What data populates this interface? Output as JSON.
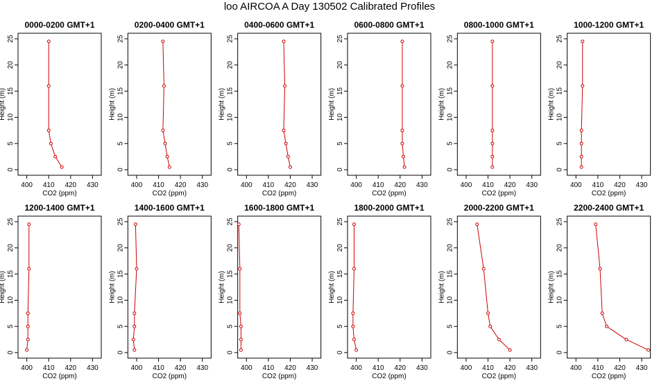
{
  "figure": {
    "title": "loo AIRCOA A  Day 130502  Calibrated Profiles"
  },
  "chart_data": [
    {
      "type": "line",
      "title": "0000-0200 GMT+1",
      "xlabel": "CO2 (ppm)",
      "ylabel": "Height (m)",
      "xlim": [
        396,
        434
      ],
      "ylim": [
        0,
        25
      ],
      "xticks": [
        400,
        410,
        420,
        430
      ],
      "yticks": [
        0,
        5,
        10,
        15,
        20,
        25
      ],
      "series": [
        {
          "color": "#cc0000",
          "x": [
            416,
            413,
            411,
            410,
            410,
            410
          ],
          "y": [
            0.5,
            2.5,
            5,
            7.5,
            16,
            24.5
          ]
        }
      ]
    },
    {
      "type": "line",
      "title": "0200-0400 GMT+1",
      "xlabel": "CO2 (ppm)",
      "ylabel": "Height (m)",
      "xlim": [
        396,
        434
      ],
      "ylim": [
        0,
        25
      ],
      "xticks": [
        400,
        410,
        420,
        430
      ],
      "yticks": [
        0,
        5,
        10,
        15,
        20,
        25
      ],
      "series": [
        {
          "color": "#cc0000",
          "x": [
            415,
            414,
            413,
            412,
            412.5,
            412
          ],
          "y": [
            0.5,
            2.5,
            5,
            7.5,
            16,
            24.5
          ]
        }
      ]
    },
    {
      "type": "line",
      "title": "0400-0600 GMT+1",
      "xlabel": "CO2 (ppm)",
      "ylabel": "Height (m)",
      "xlim": [
        396,
        434
      ],
      "ylim": [
        0,
        25
      ],
      "xticks": [
        400,
        410,
        420,
        430
      ],
      "yticks": [
        0,
        5,
        10,
        15,
        20,
        25
      ],
      "series": [
        {
          "color": "#cc0000",
          "x": [
            420,
            419,
            418,
            417,
            417.5,
            417
          ],
          "y": [
            0.5,
            2.5,
            5,
            7.5,
            16,
            24.5
          ]
        }
      ]
    },
    {
      "type": "line",
      "title": "0600-0800 GMT+1",
      "xlabel": "CO2 (ppm)",
      "ylabel": "Height (m)",
      "xlim": [
        396,
        434
      ],
      "ylim": [
        0,
        25
      ],
      "xticks": [
        400,
        410,
        420,
        430
      ],
      "yticks": [
        0,
        5,
        10,
        15,
        20,
        25
      ],
      "series": [
        {
          "color": "#cc0000",
          "x": [
            422,
            421.5,
            421,
            421,
            421,
            421
          ],
          "y": [
            0.5,
            2.5,
            5,
            7.5,
            16,
            24.5
          ]
        }
      ]
    },
    {
      "type": "line",
      "title": "0800-1000 GMT+1",
      "xlabel": "CO2 (ppm)",
      "ylabel": "Height (m)",
      "xlim": [
        396,
        434
      ],
      "ylim": [
        0,
        25
      ],
      "xticks": [
        400,
        410,
        420,
        430
      ],
      "yticks": [
        0,
        5,
        10,
        15,
        20,
        25
      ],
      "series": [
        {
          "color": "#cc0000",
          "x": [
            412,
            412,
            412,
            412,
            412,
            412
          ],
          "y": [
            0.5,
            2.5,
            5,
            7.5,
            16,
            24.5
          ]
        }
      ]
    },
    {
      "type": "line",
      "title": "1000-1200 GMT+1",
      "xlabel": "CO2 (ppm)",
      "ylabel": "Height (m)",
      "xlim": [
        396,
        434
      ],
      "ylim": [
        0,
        25
      ],
      "xticks": [
        400,
        410,
        420,
        430
      ],
      "yticks": [
        0,
        5,
        10,
        15,
        20,
        25
      ],
      "series": [
        {
          "color": "#cc0000",
          "x": [
            402.5,
            402.5,
            402.5,
            402.5,
            403,
            403
          ],
          "y": [
            0.5,
            2.5,
            5,
            7.5,
            16,
            24.5
          ]
        }
      ]
    },
    {
      "type": "line",
      "title": "1200-1400 GMT+1",
      "xlabel": "CO2 (ppm)",
      "ylabel": "Height (m)",
      "xlim": [
        396,
        434
      ],
      "ylim": [
        0,
        25
      ],
      "xticks": [
        400,
        410,
        420,
        430
      ],
      "yticks": [
        0,
        5,
        10,
        15,
        20,
        25
      ],
      "series": [
        {
          "color": "#cc0000",
          "x": [
            400,
            400.5,
            400.5,
            400.5,
            401,
            401
          ],
          "y": [
            0.5,
            2.5,
            5,
            7.5,
            16,
            24.5
          ]
        }
      ]
    },
    {
      "type": "line",
      "title": "1400-1600 GMT+1",
      "xlabel": "CO2 (ppm)",
      "ylabel": "Height (m)",
      "xlim": [
        396,
        434
      ],
      "ylim": [
        0,
        25
      ],
      "xticks": [
        400,
        410,
        420,
        430
      ],
      "yticks": [
        0,
        5,
        10,
        15,
        20,
        25
      ],
      "series": [
        {
          "color": "#cc0000",
          "x": [
            399,
            398.5,
            399,
            399,
            400,
            399.5
          ],
          "y": [
            0.5,
            2.5,
            5,
            7.5,
            16,
            24.5
          ]
        }
      ]
    },
    {
      "type": "line",
      "title": "1600-1800 GMT+1",
      "xlabel": "CO2 (ppm)",
      "ylabel": "Height (m)",
      "xlim": [
        396,
        434
      ],
      "ylim": [
        0,
        25
      ],
      "xticks": [
        400,
        410,
        420,
        430
      ],
      "yticks": [
        0,
        5,
        10,
        15,
        20,
        25
      ],
      "series": [
        {
          "color": "#cc0000",
          "x": [
            397.5,
            397.5,
            397.5,
            397,
            397,
            396.5
          ],
          "y": [
            0.5,
            2.5,
            5,
            7.5,
            16,
            24.5
          ]
        }
      ]
    },
    {
      "type": "line",
      "title": "1800-2000 GMT+1",
      "xlabel": "CO2 (ppm)",
      "ylabel": "Height (m)",
      "xlim": [
        396,
        434
      ],
      "ylim": [
        0,
        25
      ],
      "xticks": [
        400,
        410,
        420,
        430
      ],
      "yticks": [
        0,
        5,
        10,
        15,
        20,
        25
      ],
      "series": [
        {
          "color": "#cc0000",
          "x": [
            400,
            399,
            398.5,
            398.5,
            399,
            399
          ],
          "y": [
            0.5,
            2.5,
            5,
            7.5,
            16,
            24.5
          ]
        }
      ]
    },
    {
      "type": "line",
      "title": "2000-2200 GMT+1",
      "xlabel": "CO2 (ppm)",
      "ylabel": "Height (m)",
      "xlim": [
        396,
        434
      ],
      "ylim": [
        0,
        25
      ],
      "xticks": [
        400,
        410,
        420,
        430
      ],
      "yticks": [
        0,
        5,
        10,
        15,
        20,
        25
      ],
      "series": [
        {
          "color": "#cc0000",
          "x": [
            420,
            415,
            411,
            410,
            408,
            405
          ],
          "y": [
            0.5,
            2.5,
            5,
            7.5,
            16,
            24.5
          ]
        }
      ]
    },
    {
      "type": "line",
      "title": "2200-2400 GMT+1",
      "xlabel": "CO2 (ppm)",
      "ylabel": "Height (m)",
      "xlim": [
        396,
        434
      ],
      "ylim": [
        0,
        25
      ],
      "xticks": [
        400,
        410,
        420,
        430
      ],
      "yticks": [
        0,
        5,
        10,
        15,
        20,
        25
      ],
      "series": [
        {
          "color": "#cc0000",
          "x": [
            433,
            423,
            414,
            412,
            411,
            409
          ],
          "y": [
            0.5,
            2.5,
            5,
            7.5,
            16,
            24.5
          ]
        }
      ]
    }
  ]
}
